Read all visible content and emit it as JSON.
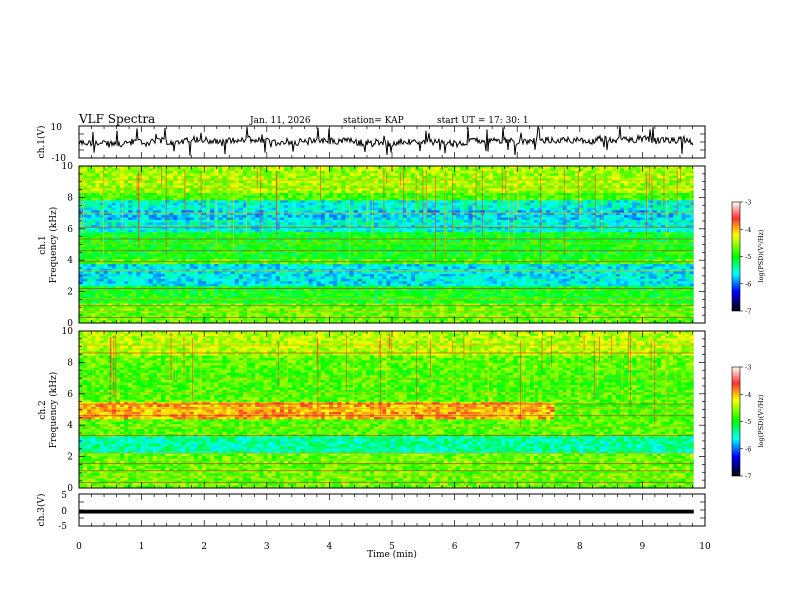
{
  "header": {
    "title": "VLF Spectra",
    "date": "Jan. 11, 2026",
    "station": "station= KAP",
    "start": "start  UT =   17: 30: 1"
  },
  "chart_data": [
    {
      "type": "line",
      "panel": "ch1-waveform",
      "ylabel": "ch.1(V)",
      "ylim": [
        -10,
        10
      ],
      "ytick_labels": [
        "10",
        "-10"
      ],
      "xlim": [
        0,
        10
      ]
    },
    {
      "type": "heatmap",
      "panel": "ch1-spectrogram",
      "ylabel": "ch.1\nFrequency (kHz)",
      "ylabel_line1": "ch.1",
      "ylabel_line2": "Frequency (kHz)",
      "ylim": [
        0,
        10
      ],
      "ytick_labels": [
        "0",
        "2",
        "4",
        "6",
        "8",
        "10"
      ],
      "xlim": [
        0,
        9.82
      ],
      "colorbar": {
        "label": "log(PSD)(V²/Hz)",
        "range": [
          -7,
          -3
        ],
        "tick_labels": [
          "-3",
          "-4",
          "-5",
          "-6",
          "-7"
        ]
      }
    },
    {
      "type": "heatmap",
      "panel": "ch2-spectrogram",
      "ylabel": "ch.2\nFrequency (kHz)",
      "ylabel_line1": "ch.2",
      "ylabel_line2": "Frequency (kHz)",
      "ylim": [
        0,
        10
      ],
      "ytick_labels": [
        "0",
        "2",
        "4",
        "6",
        "8",
        "10"
      ],
      "xlim": [
        0,
        9.82
      ],
      "colorbar": {
        "label": "log(PSD)(V²/Hz)",
        "range": [
          -7,
          -3
        ],
        "tick_labels": [
          "-3",
          "-4",
          "-5",
          "-6",
          "-7"
        ]
      }
    },
    {
      "type": "line",
      "panel": "ch3-waveform",
      "ylabel": "ch.3(V)",
      "ylim": [
        -5,
        5
      ],
      "ytick_labels": [
        "5",
        "0",
        "-5"
      ],
      "xlim": [
        0,
        10
      ]
    }
  ],
  "xaxis": {
    "label": "Time (min)",
    "tick_labels": [
      "0",
      "1",
      "2",
      "3",
      "4",
      "5",
      "6",
      "7",
      "8",
      "9",
      "10"
    ]
  }
}
